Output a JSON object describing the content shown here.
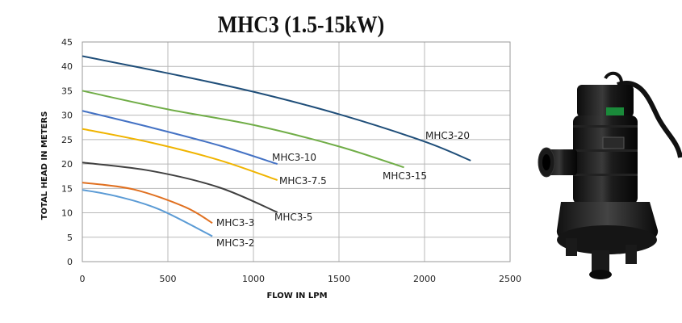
{
  "title": "MHC3 (1.5-15kW)",
  "chart_data": {
    "type": "line",
    "title": "MHC3 (1.5-15kW)",
    "xlabel": "FLOW IN  LPM",
    "ylabel": "TOTAL HEAD IN  METERS",
    "xlim": [
      0,
      2500
    ],
    "ylim": [
      0,
      45
    ],
    "x_ticks": [
      0,
      500,
      1000,
      1500,
      2000,
      2500
    ],
    "y_ticks": [
      0,
      5,
      10,
      15,
      20,
      25,
      30,
      35,
      40,
      45
    ],
    "grid": true,
    "series": [
      {
        "name": "MHC3-20",
        "color": "#1f4e79",
        "points": [
          [
            0,
            42.1
          ],
          [
            500,
            38.6
          ],
          [
            1000,
            34.8
          ],
          [
            1500,
            30.2
          ],
          [
            2000,
            24.6
          ],
          [
            2270,
            20.7
          ]
        ]
      },
      {
        "name": "MHC3-15",
        "color": "#70ad47",
        "points": [
          [
            0,
            35.0
          ],
          [
            500,
            31.2
          ],
          [
            1000,
            28.0
          ],
          [
            1500,
            23.6
          ],
          [
            1880,
            19.3
          ]
        ]
      },
      {
        "name": "MHC3-10",
        "color": "#4472c4",
        "points": [
          [
            0,
            30.9
          ],
          [
            400,
            27.5
          ],
          [
            800,
            23.8
          ],
          [
            1140,
            20.0
          ]
        ]
      },
      {
        "name": "MHC3-7.5",
        "color": "#f0b400",
        "points": [
          [
            0,
            27.2
          ],
          [
            400,
            24.4
          ],
          [
            800,
            20.8
          ],
          [
            1140,
            16.7
          ]
        ]
      },
      {
        "name": "MHC3-5",
        "color": "#404040",
        "points": [
          [
            0,
            20.3
          ],
          [
            400,
            18.6
          ],
          [
            800,
            15.2
          ],
          [
            1140,
            10.1
          ]
        ]
      },
      {
        "name": "MHC3-3",
        "color": "#e07020",
        "points": [
          [
            0,
            16.2
          ],
          [
            300,
            14.8
          ],
          [
            600,
            11.2
          ],
          [
            760,
            7.9
          ]
        ]
      },
      {
        "name": "MHC3-2",
        "color": "#5b9bd5",
        "points": [
          [
            0,
            14.7
          ],
          [
            200,
            13.4
          ],
          [
            450,
            10.7
          ],
          [
            760,
            5.2
          ]
        ]
      }
    ]
  },
  "image": {
    "description_icon": "submersible-pump-icon"
  }
}
